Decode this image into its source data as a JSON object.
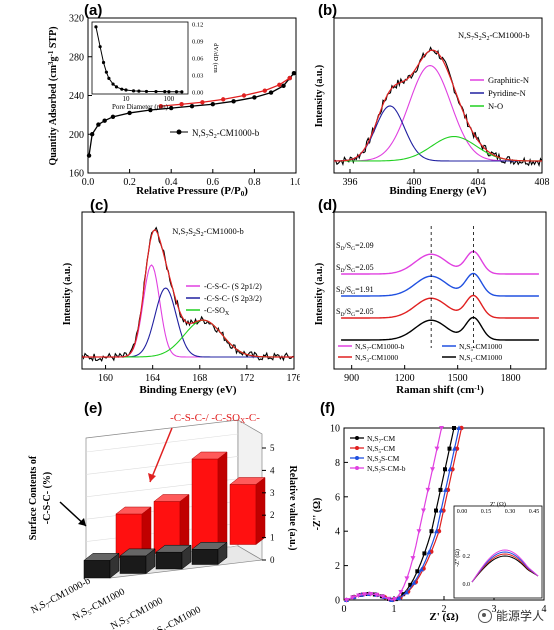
{
  "watermark": "能源学人",
  "chart_data": [
    {
      "panel": "(a)",
      "type": "line",
      "xlabel": "Relative Pressure (P/P",
      "xlabel_sub": "0",
      "ylabel": "Quantity Adsorbed (cm",
      "ylabel_rest": " STP)",
      "xlim": [
        0,
        1.0
      ],
      "ylim": [
        160,
        320
      ],
      "xticks": [
        "0.0",
        "0.2",
        "0.4",
        "0.6",
        "0.8",
        "1.0"
      ],
      "yticks": [
        "160",
        "200",
        "240",
        "280",
        "320"
      ],
      "legend": "N,S",
      "legend_rest": "-CM1000-b",
      "series": [
        {
          "name": "N,S",
          "color": "#000000",
          "x": [
            0.005,
            0.02,
            0.05,
            0.08,
            0.12,
            0.2,
            0.3,
            0.4,
            0.5,
            0.6,
            0.7,
            0.8,
            0.88,
            0.94,
            0.97,
            0.99
          ],
          "y": [
            178,
            200,
            210,
            214,
            218,
            222,
            225,
            227,
            229,
            231,
            234,
            238,
            243,
            250,
            258,
            263
          ]
        },
        {
          "name": "desorption",
          "color": "#e02020",
          "x": [
            0.35,
            0.45,
            0.55,
            0.65,
            0.75,
            0.85,
            0.92,
            0.97
          ],
          "y": [
            229,
            231,
            233,
            236,
            240,
            245,
            251,
            258
          ]
        }
      ],
      "inset": {
        "xlabel": "Pore Diameter (nm)",
        "ylabel": "dV/dD (cm",
        "xticks": [
          "10",
          "100"
        ],
        "yticks": [
          "0.00",
          "0.03",
          "0.06",
          "0.09",
          "0.12"
        ],
        "ylim": [
          0,
          0.12
        ],
        "x": [
          2,
          2.5,
          3,
          3.5,
          4,
          5,
          6,
          8,
          10,
          15,
          20,
          30,
          50,
          80,
          100,
          150,
          200
        ],
        "y": [
          0.115,
          0.08,
          0.052,
          0.035,
          0.024,
          0.014,
          0.009,
          0.005,
          0.0035,
          0.002,
          0.0015,
          0.001,
          0.0008,
          0.0006,
          0.0005,
          0.0004,
          0.0003
        ]
      }
    },
    {
      "panel": "(b)",
      "type": "line",
      "title": "N,S",
      "title_rest": "-CM1000-b",
      "xlabel": "Binding Energy (eV)",
      "ylabel": "Intensity (a.u.)",
      "xlim": [
        395,
        408
      ],
      "xticks": [
        "396",
        "400",
        "404",
        "408"
      ],
      "legend": [
        "Graphitic-N",
        "Pyridine-N",
        "N-O"
      ],
      "colors": {
        "raw": "#000000",
        "fit": "#e02020",
        "graphitic": "#e040e0",
        "pyridine": "#2020a0",
        "no": "#20d020"
      },
      "peaks": [
        {
          "name": "Graphitic-N",
          "center": 401.0,
          "height": 0.78,
          "width": 1.3
        },
        {
          "name": "Pyridine-N",
          "center": 398.5,
          "height": 0.45,
          "width": 0.9
        },
        {
          "name": "N-O",
          "center": 402.5,
          "height": 0.2,
          "width": 1.4
        }
      ]
    },
    {
      "panel": "(c)",
      "type": "line",
      "title": "N,S",
      "title_rest": "-CM1000-b",
      "xlabel": "Binding Energy (eV)",
      "ylabel": "Intensity (a.u.)",
      "xlim": [
        158,
        176
      ],
      "xticks": [
        "160",
        "164",
        "168",
        "172",
        "176"
      ],
      "legend": [
        "-C-S-C- (S 2p1/2)",
        "-C-S-C- (S 2p3/2)",
        "-C-SO"
      ],
      "colors": {
        "raw": "#000000",
        "fit": "#e02020",
        "p12": "#e040e0",
        "p32": "#2020a0",
        "sox": "#20d020"
      },
      "peaks": [
        {
          "name": "p12",
          "center": 163.9,
          "height": 0.8,
          "width": 0.7
        },
        {
          "name": "p32",
          "center": 165.1,
          "height": 0.6,
          "width": 0.9
        },
        {
          "name": "sox",
          "center": 168.3,
          "height": 0.32,
          "width": 1.6
        }
      ]
    },
    {
      "panel": "(d)",
      "type": "line",
      "xlabel": "Raman shift (cm",
      "ylabel": "Intensity (a.u.)",
      "xlim": [
        800,
        2000
      ],
      "xticks": [
        "900",
        "1200",
        "1500",
        "1800"
      ],
      "ratio_prefix": "S",
      "ratio_values": [
        "2.09",
        "2.05",
        "1.91",
        "2.05"
      ],
      "legend": [
        "N,S",
        "N,S",
        "N,S",
        "N,S"
      ],
      "legend_suffix": [
        "-CM1000-b",
        "-CM1000",
        "-CM1000",
        "-CM1000"
      ],
      "series": [
        {
          "name": "N,S-CM1000-b",
          "color": "#e040e0",
          "offset": 3
        },
        {
          "name": "N,S-CM1000 (blue)",
          "color": "#2050e0",
          "offset": 2
        },
        {
          "name": "N,S-CM1000 (red)",
          "color": "#e02020",
          "offset": 1
        },
        {
          "name": "N,S-CM1000 (black)",
          "color": "#000000",
          "offset": 0
        }
      ],
      "d_band": 1350,
      "g_band": 1590
    },
    {
      "panel": "(e)",
      "type": "bar",
      "zlabel": "Surface Contents of",
      "zlabel2": "-C-S-C- (%)",
      "ylabel": "Relative value (a.u.)",
      "annotation_red": "-C-S-C-/ -C-SO",
      "annotation_red_rest": "-C-",
      "yticks": [
        "0",
        "1",
        "2",
        "3",
        "4",
        "5"
      ],
      "categories": [
        "N,S",
        "N,S",
        "N,S",
        "N,S"
      ],
      "category_suffix": [
        "-CM1000-b",
        "-CM1000",
        "-CM1000",
        "-CM1000"
      ],
      "surface_contents": [
        2.2,
        2.2,
        2.1,
        1.9
      ],
      "relative_value": [
        2.2,
        2.6,
        4.5,
        3.0
      ]
    },
    {
      "panel": "(f)",
      "type": "scatter",
      "xlabel": "Z' (Ω)",
      "ylabel": "-Z'' (Ω)",
      "xlim": [
        0,
        4
      ],
      "ylim": [
        0,
        10
      ],
      "xticks": [
        "0",
        "1",
        "2",
        "3",
        "4"
      ],
      "yticks": [
        "0",
        "2",
        "4",
        "6",
        "8",
        "10"
      ],
      "legend": [
        "N,S-CM",
        "N,S-CM",
        "N,S",
        "N,S"
      ],
      "legend_rest": [
        "",
        "",
        "-CM",
        "-CM-b"
      ],
      "series": [
        {
          "name": "N,S-CM (black)",
          "color": "#000000",
          "marker": "square",
          "knee": 1.75,
          "vert": 2.2
        },
        {
          "name": "N,S-CM (red)",
          "color": "#e02020",
          "marker": "circle",
          "knee": 1.9,
          "vert": 2.35
        },
        {
          "name": "N,S-CM (blue)",
          "color": "#2050e0",
          "marker": "triangle",
          "knee": 1.85,
          "vert": 2.3
        },
        {
          "name": "N,S-CM-b",
          "color": "#e040e0",
          "marker": "tri-down",
          "knee": 1.5,
          "vert": 1.95
        }
      ],
      "inset": {
        "xlabel": "Z' (Ω)",
        "ylabel": "-Z'' (Ω)",
        "xticks": [
          "0.00",
          "0.15",
          "0.30",
          "0.45"
        ],
        "yticks": [
          "0.0",
          "0.2"
        ]
      }
    }
  ]
}
